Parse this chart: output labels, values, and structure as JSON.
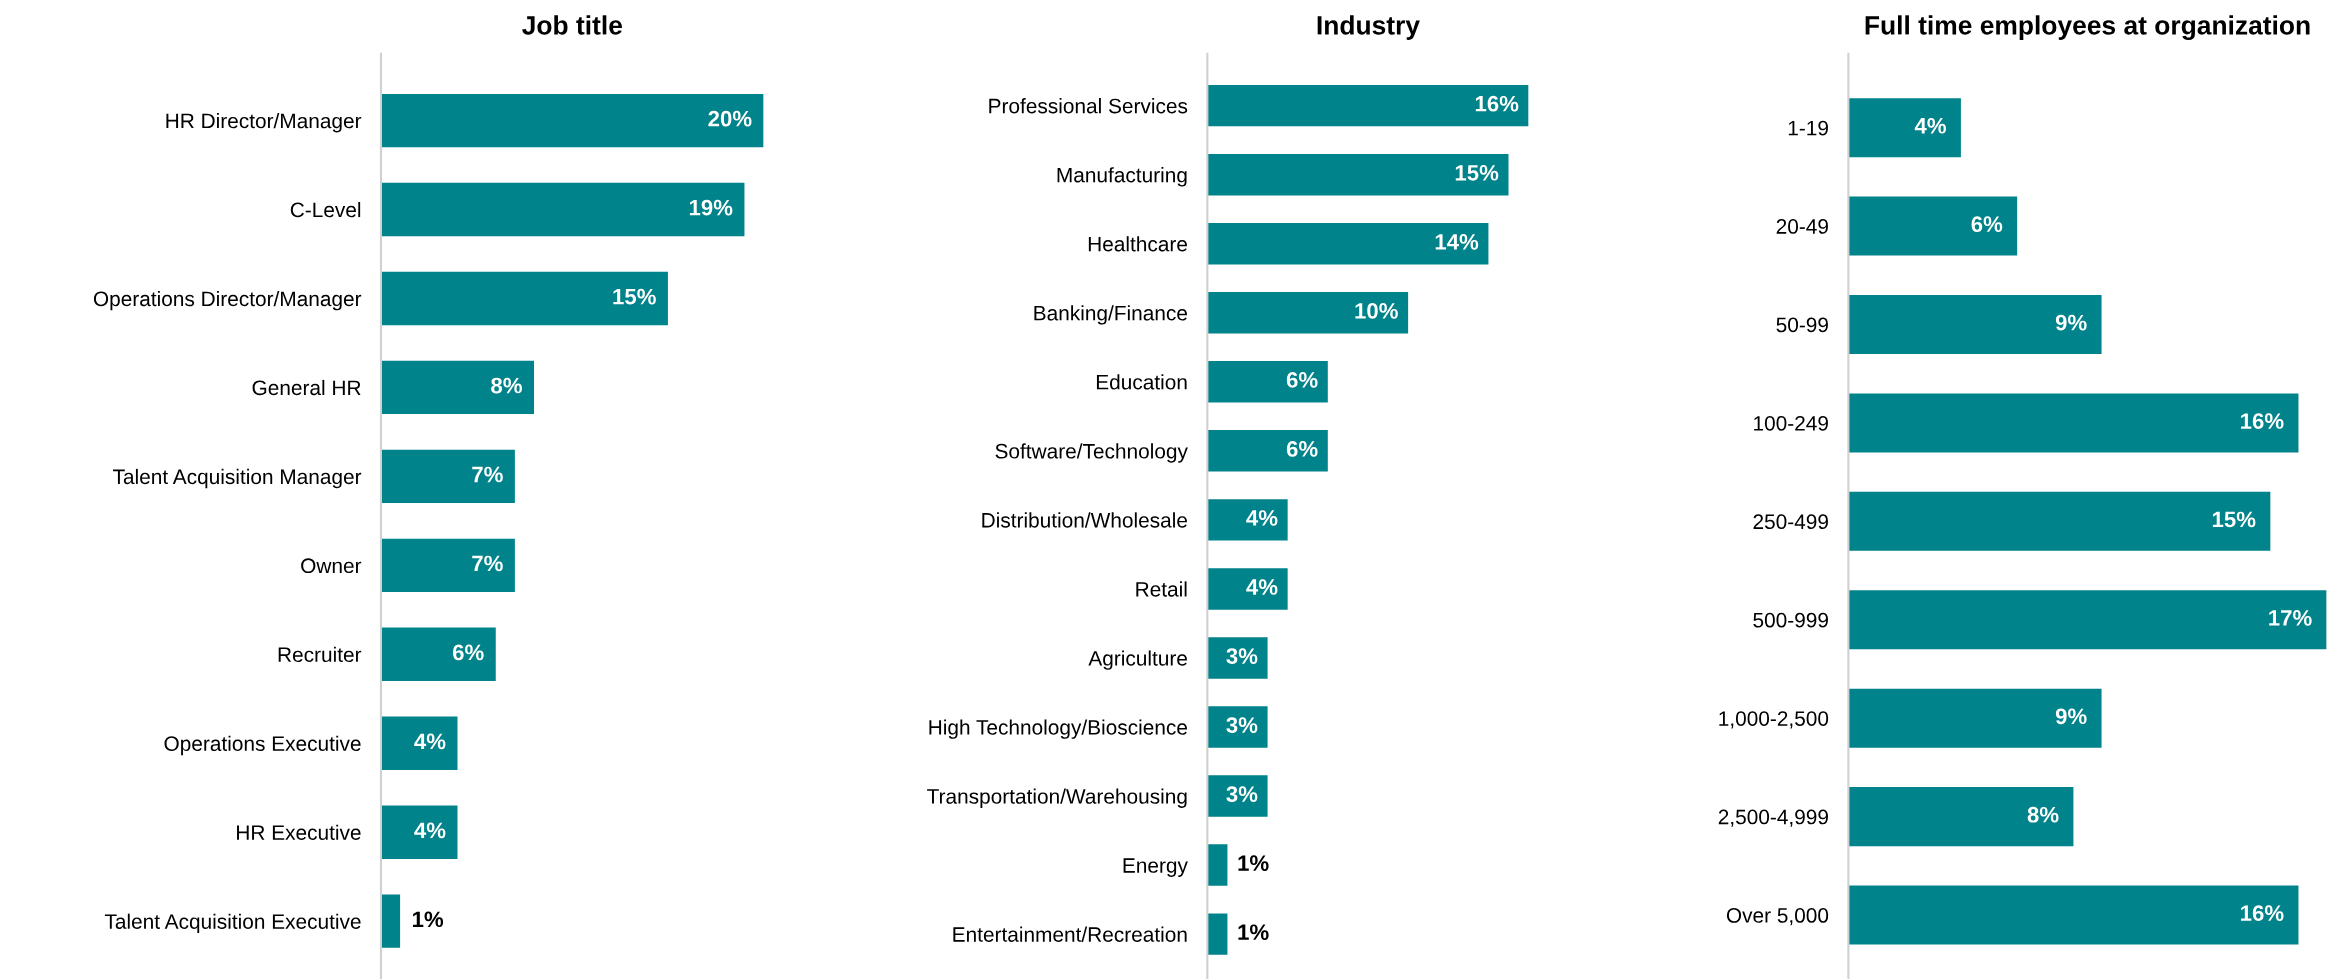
{
  "chart_data": [
    {
      "type": "bar",
      "orientation": "horizontal",
      "title": "Job title",
      "tick_labels": "y",
      "color": "#00838a",
      "categories": [
        "HR Director/Manager",
        "C-Level",
        "Operations Director/Manager",
        "General HR",
        "Talent Acquisition Manager",
        "Owner",
        "Recruiter",
        "Operations Executive",
        "HR Executive",
        "Talent Acquisition Executive"
      ],
      "values": [
        20,
        19,
        15,
        8,
        7,
        7,
        6,
        4,
        4,
        1
      ],
      "value_labels": [
        "20%",
        "19%",
        "15%",
        "8%",
        "7%",
        "7%",
        "6%",
        "4%",
        "4%",
        "1%"
      ]
    },
    {
      "type": "bar",
      "orientation": "horizontal",
      "title": "Industry",
      "tick_labels": "y",
      "color": "#00838a",
      "categories": [
        "Professional Services",
        "Manufacturing",
        "Healthcare",
        "Banking/Finance",
        "Education",
        "Software/Technology",
        "Distribution/Wholesale",
        "Retail",
        "Agriculture",
        "High Technology/Bioscience",
        "Transportation/Warehousing",
        "Energy",
        "Entertainment/Recreation"
      ],
      "values": [
        16,
        15,
        14,
        10,
        6,
        6,
        4,
        4,
        3,
        3,
        3,
        1,
        1
      ],
      "value_labels": [
        "16%",
        "15%",
        "14%",
        "10%",
        "6%",
        "6%",
        "4%",
        "4%",
        "3%",
        "3%",
        "3%",
        "1%",
        "1%"
      ]
    },
    {
      "type": "bar",
      "orientation": "horizontal",
      "title": "Full time employees at organization",
      "tick_labels": "y",
      "color": "#00838a",
      "categories": [
        "1-19",
        "20-49",
        "50-99",
        "100-249",
        "250-499",
        "500-999",
        "1,000-2,500",
        "2,500-4,999",
        "Over 5,000"
      ],
      "values": [
        4,
        6,
        9,
        16,
        15,
        17,
        9,
        8,
        16
      ],
      "value_labels": [
        "4%",
        "6%",
        "9%",
        "16%",
        "15%",
        "17%",
        "9%",
        "8%",
        "16%"
      ]
    }
  ]
}
